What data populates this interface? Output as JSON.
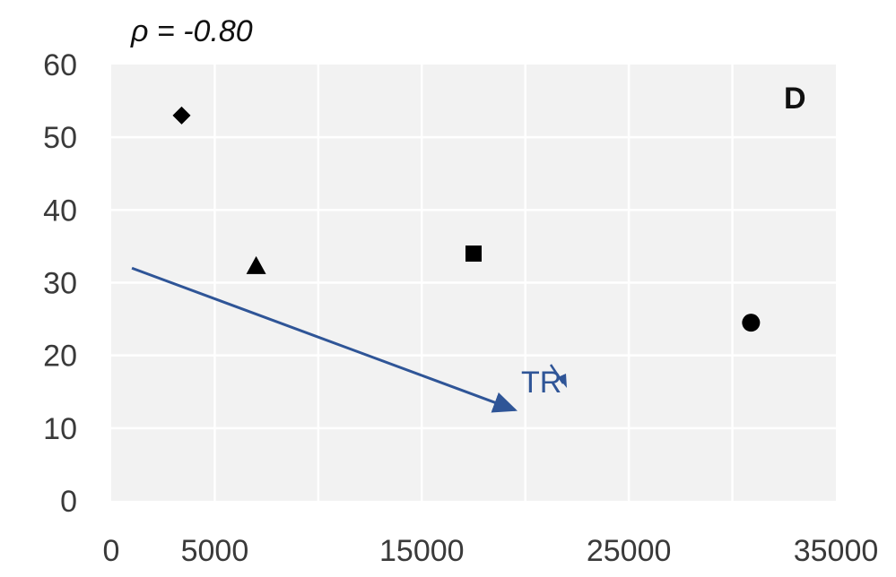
{
  "chart_data": {
    "type": "scatter",
    "title": "",
    "xlabel": "",
    "ylabel": "",
    "correlation_label": "ρ = -0.80",
    "panel_label": "D",
    "xlim": [
      0,
      35000
    ],
    "ylim": [
      0,
      60
    ],
    "x_ticks": [
      0,
      5000,
      15000,
      25000,
      35000
    ],
    "x_gridlines": [
      5000,
      10000,
      15000,
      20000,
      25000,
      30000
    ],
    "y_ticks": [
      0,
      10,
      20,
      30,
      40,
      50,
      60
    ],
    "grid": true,
    "background_color": "#f2f2f2",
    "grid_color": "#ffffff",
    "points": [
      {
        "x": 3400,
        "y": 53,
        "marker": "diamond"
      },
      {
        "x": 7000,
        "y": 32.3,
        "marker": "triangle"
      },
      {
        "x": 17500,
        "y": 34,
        "marker": "square"
      },
      {
        "x": 30900,
        "y": 24.5,
        "marker": "circle"
      }
    ],
    "marker_color": "#000000",
    "trend": {
      "label": "TR",
      "color": "#2f5597",
      "start": {
        "x": 1000,
        "y": 32
      },
      "end": {
        "x": 19500,
        "y": 12.5
      }
    }
  }
}
